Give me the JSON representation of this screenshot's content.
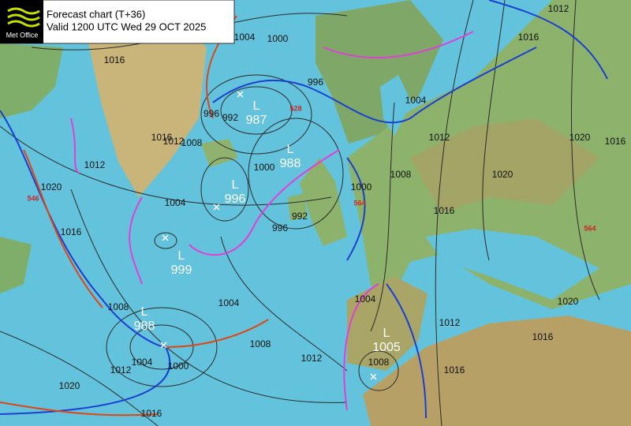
{
  "header": {
    "logo_text": "Met Office",
    "title": "Forecast chart (T+36)",
    "valid": "Valid 1200 UTC Wed 29 OCT 2025"
  },
  "lows": [
    {
      "label": "L",
      "pressure": 987
    },
    {
      "label": "L",
      "pressure": 988
    },
    {
      "label": "L",
      "pressure": 996
    },
    {
      "label": "L",
      "pressure": 999
    },
    {
      "label": "L",
      "pressure": 988
    },
    {
      "label": "L",
      "pressure": 1005
    }
  ],
  "isobar_labels": [
    1016,
    1004,
    1000,
    996,
    992,
    996,
    1016,
    1012,
    1008,
    1012,
    1020,
    1016,
    1004,
    1000,
    992,
    996,
    1000,
    1008,
    1004,
    1012,
    1016,
    1012,
    1020,
    1016,
    1020,
    1016,
    1004,
    1008,
    1004,
    1000,
    1012,
    1008,
    1012,
    1004,
    1020,
    1016,
    1012,
    1016,
    1008,
    1020,
    1016
  ],
  "thickness_labels": [
    528,
    546,
    564,
    564
  ]
}
